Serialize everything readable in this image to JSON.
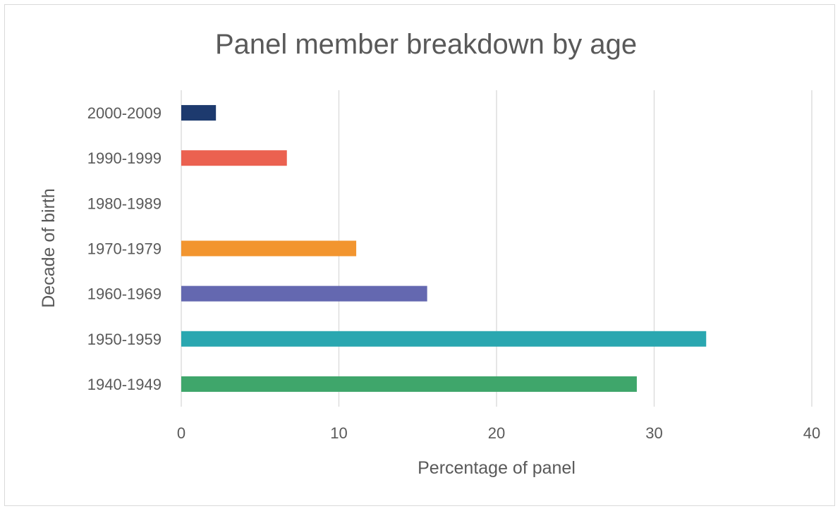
{
  "chart_data": {
    "type": "bar",
    "orientation": "horizontal",
    "title": "Panel member breakdown by age",
    "xlabel": "Percentage of panel",
    "ylabel": "Decade of birth",
    "xlim": [
      0,
      40
    ],
    "xticks": [
      0,
      10,
      20,
      30,
      40
    ],
    "grid": true,
    "categories": [
      "1940-1949",
      "1950-1959",
      "1960-1969",
      "1970-1979",
      "1980-1989",
      "1990-1999",
      "2000-2009"
    ],
    "values": [
      28.9,
      33.3,
      15.6,
      11.1,
      0,
      6.7,
      2.2
    ],
    "colors": [
      "#3fa66b",
      "#2aa7b0",
      "#6468b0",
      "#f2952f",
      "#ffffff",
      "#eb6150",
      "#1d3a6e"
    ]
  }
}
